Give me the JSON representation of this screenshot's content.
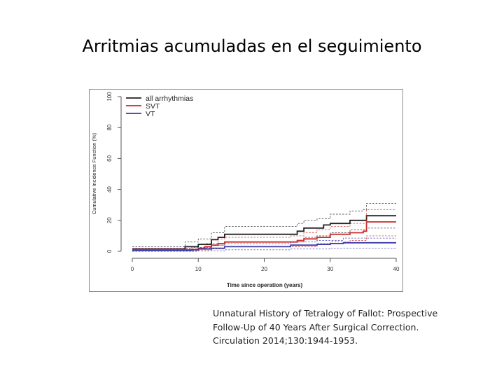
{
  "slide": {
    "title": "Arritmias acumuladas en el seguimiento"
  },
  "caption": {
    "line1": "Unnatural History of Tetralogy of Fallot: Prospective",
    "line2": "Follow-Up of 40 Years After Surgical Correction.",
    "line3": "Circulation 2014;130:1944-1953."
  },
  "chart_data": {
    "type": "line",
    "xlabel": "Time since operation (years)",
    "ylabel": "Cumulative Incidence Function (%)",
    "xlim": [
      0,
      40
    ],
    "ylim": [
      0,
      100
    ],
    "x_ticks": [
      0,
      10,
      20,
      30,
      40
    ],
    "y_ticks": [
      0,
      20,
      40,
      60,
      80,
      100
    ],
    "legend_position": "top-left",
    "grid": false,
    "series": [
      {
        "name": "all arrhythmias",
        "color": "#222222",
        "points": [
          [
            0,
            1.5
          ],
          [
            7.5,
            1.5
          ],
          [
            8,
            3
          ],
          [
            10,
            4.5
          ],
          [
            12,
            7.5
          ],
          [
            13,
            9
          ],
          [
            14,
            11
          ],
          [
            24,
            11
          ],
          [
            25,
            13
          ],
          [
            26,
            15
          ],
          [
            28,
            15
          ],
          [
            29,
            17
          ],
          [
            30,
            18
          ],
          [
            33,
            20
          ],
          [
            35,
            20
          ],
          [
            35.5,
            23
          ],
          [
            40,
            23
          ]
        ],
        "ci_upper": [
          [
            0,
            3
          ],
          [
            7,
            3
          ],
          [
            8,
            6
          ],
          [
            10,
            8
          ],
          [
            12,
            12
          ],
          [
            14,
            16
          ],
          [
            24,
            16
          ],
          [
            25,
            18
          ],
          [
            26,
            20
          ],
          [
            28,
            21
          ],
          [
            30,
            24
          ],
          [
            33,
            26
          ],
          [
            35,
            27
          ],
          [
            35.5,
            31
          ],
          [
            40,
            31
          ]
        ],
        "ci_lower": [
          [
            0,
            0.5
          ],
          [
            8,
            1
          ],
          [
            10,
            2
          ],
          [
            12,
            4
          ],
          [
            14,
            6
          ],
          [
            24,
            6
          ],
          [
            26,
            9
          ],
          [
            28,
            10
          ],
          [
            30,
            12
          ],
          [
            33,
            14
          ],
          [
            35.5,
            15
          ],
          [
            40,
            15
          ]
        ]
      },
      {
        "name": "SVT",
        "color": "#cc2a2a",
        "points": [
          [
            0,
            1
          ],
          [
            9,
            1
          ],
          [
            10,
            2
          ],
          [
            11,
            3
          ],
          [
            12,
            4
          ],
          [
            13,
            5
          ],
          [
            14,
            6
          ],
          [
            24,
            6
          ],
          [
            25,
            7
          ],
          [
            26,
            8
          ],
          [
            28,
            9
          ],
          [
            30,
            11
          ],
          [
            33,
            12
          ],
          [
            35,
            13
          ],
          [
            35.5,
            19
          ],
          [
            40,
            19
          ]
        ],
        "ci_upper": [
          [
            0,
            2
          ],
          [
            9,
            2
          ],
          [
            11,
            5
          ],
          [
            13,
            8
          ],
          [
            14,
            9
          ],
          [
            24,
            10
          ],
          [
            26,
            12
          ],
          [
            28,
            14
          ],
          [
            30,
            16
          ],
          [
            33,
            18
          ],
          [
            35.5,
            27
          ],
          [
            40,
            27
          ]
        ],
        "ci_lower": [
          [
            0,
            0.3
          ],
          [
            10,
            0.5
          ],
          [
            12,
            1.5
          ],
          [
            14,
            3
          ],
          [
            24,
            3
          ],
          [
            28,
            5
          ],
          [
            30,
            6
          ],
          [
            33,
            7
          ],
          [
            35.5,
            10
          ],
          [
            40,
            10
          ]
        ]
      },
      {
        "name": "VT",
        "color": "#3a3aaa",
        "points": [
          [
            0,
            0.5
          ],
          [
            8,
            0.5
          ],
          [
            9,
            1
          ],
          [
            10,
            1.5
          ],
          [
            12,
            2
          ],
          [
            14,
            3
          ],
          [
            23,
            3
          ],
          [
            24,
            4
          ],
          [
            28,
            4.5
          ],
          [
            30,
            5
          ],
          [
            32,
            5.5
          ],
          [
            40,
            5.5
          ]
        ],
        "ci_upper": [
          [
            0,
            1.5
          ],
          [
            9,
            2.5
          ],
          [
            12,
            4
          ],
          [
            14,
            5
          ],
          [
            24,
            6
          ],
          [
            28,
            7
          ],
          [
            32,
            8.5
          ],
          [
            40,
            8.5
          ]
        ],
        "ci_lower": [
          [
            0,
            0
          ],
          [
            10,
            0.3
          ],
          [
            14,
            1
          ],
          [
            24,
            1.5
          ],
          [
            30,
            2
          ],
          [
            40,
            2
          ]
        ]
      }
    ]
  }
}
